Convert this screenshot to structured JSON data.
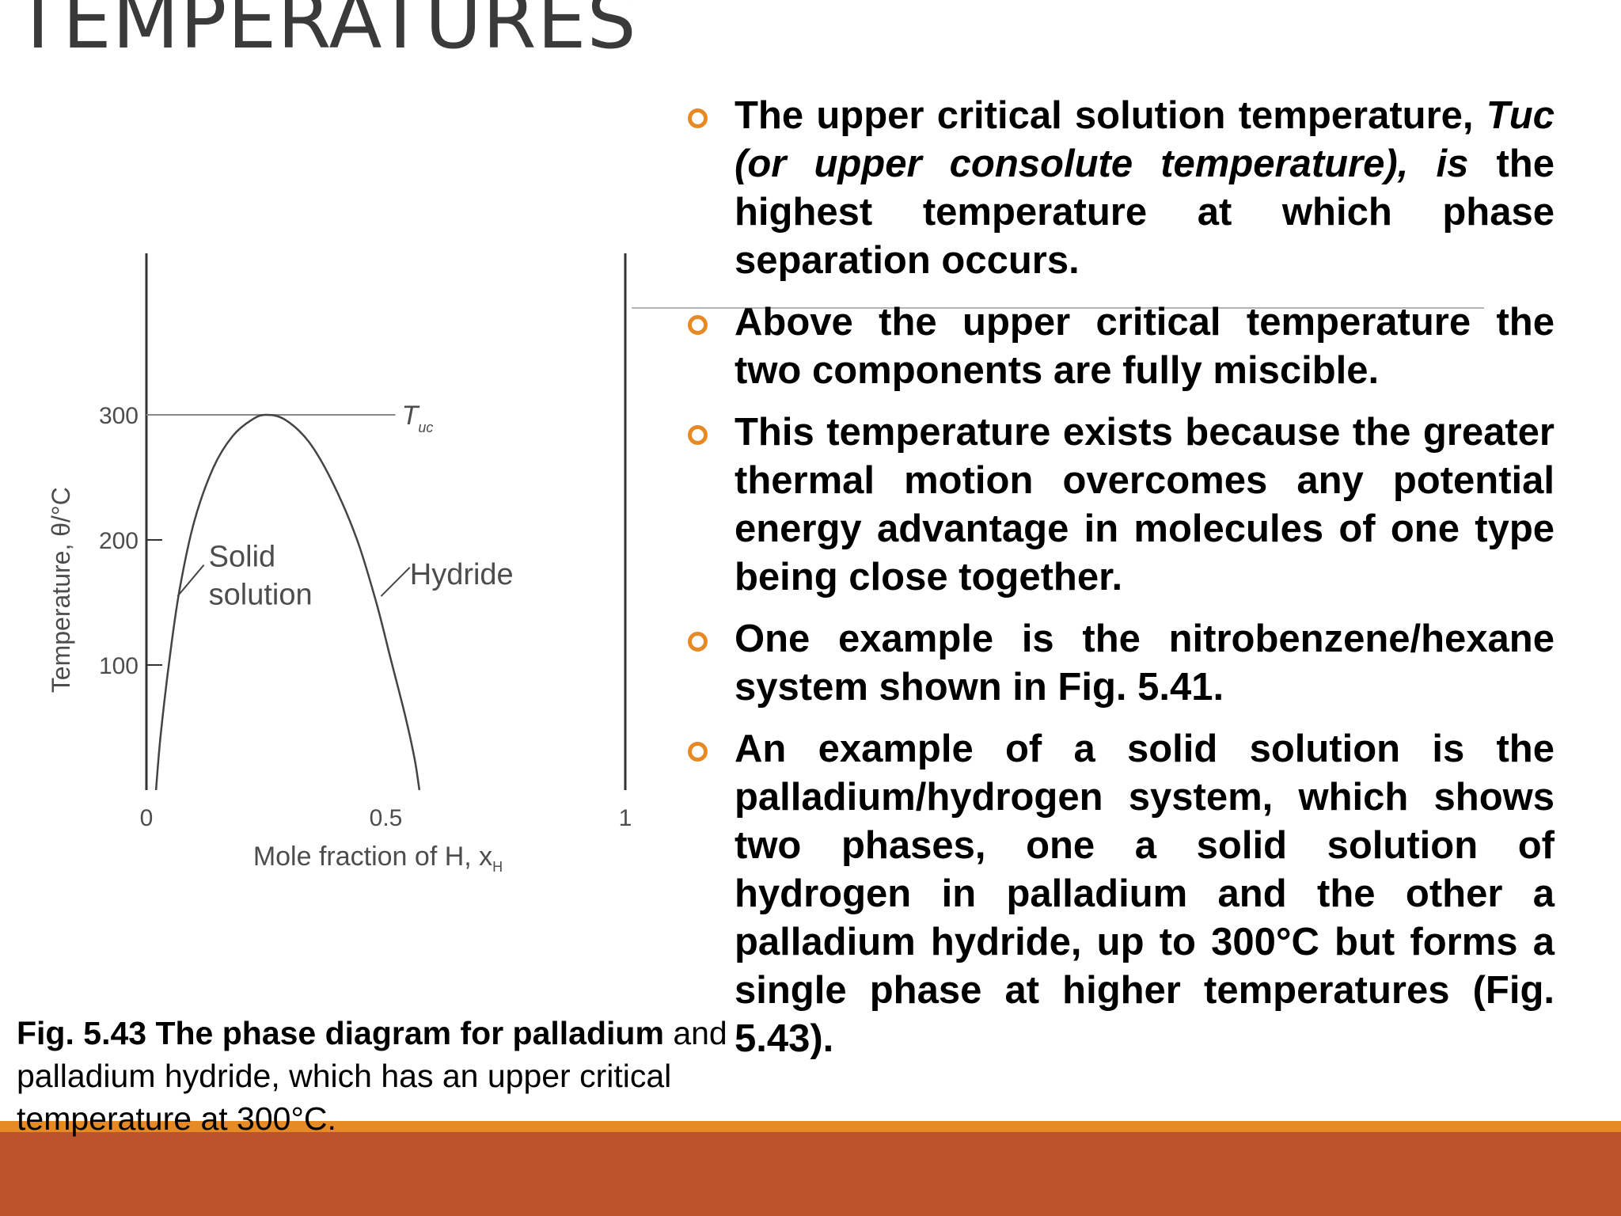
{
  "title": "TEMPERATURES",
  "bullets": [
    {
      "parts": [
        {
          "text": "The upper critical solution temperature, ",
          "italic": false
        },
        {
          "text": "Tuc (or upper consolute temperature),",
          "italic": true
        },
        {
          "text": " ",
          "italic": false
        },
        {
          "text": "is",
          "italic": true
        },
        {
          "text": " the highest temperature at which phase separation occurs.",
          "italic": false
        }
      ]
    },
    {
      "parts": [
        {
          "text": "Above the upper critical temperature the two components are fully miscible.",
          "italic": false
        }
      ]
    },
    {
      "parts": [
        {
          "text": "This temperature exists because the greater thermal motion overcomes any potential energy advantage in molecules of one type being close together.",
          "italic": false
        }
      ]
    },
    {
      "parts": [
        {
          "text": "One example is the nitrobenzene/hexane system shown in Fig. 5.41.",
          "italic": false
        }
      ]
    },
    {
      "parts": [
        {
          "text": "An example of a solid solution is the palladium/hydrogen system, which shows two phases, one a solid solution of hydrogen in palladium and the other a palladium hydride, up to 300°C but forms a single phase at higher temperatures (Fig. 5.43).",
          "italic": false
        }
      ]
    }
  ],
  "caption": {
    "bold": "Fig. 5.43 The phase diagram for palladium",
    "rest": " and palladium hydride, which has an upper critical temperature at 300°C."
  },
  "chart_data": {
    "type": "line",
    "xlabel": "Mole fraction of H, x",
    "xlabel_sub": "H",
    "ylabel": "Temperature, θ/°C",
    "xlim": [
      0,
      1
    ],
    "ylim": [
      0,
      320
    ],
    "x_ticks": [
      0,
      0.5,
      1
    ],
    "x_tick_labels": [
      "0",
      "0.5",
      "1"
    ],
    "y_ticks": [
      100,
      200,
      300
    ],
    "y_tick_labels": [
      "100",
      "200",
      "300"
    ],
    "grid": false,
    "series": [
      {
        "x": [
          0.02,
          0.03,
          0.05,
          0.07,
          0.1,
          0.14,
          0.18,
          0.22,
          0.25,
          0.29,
          0.34,
          0.39,
          0.44,
          0.48,
          0.51,
          0.54,
          0.56,
          0.57
        ],
        "y": [
          0,
          45,
          110,
          162,
          215,
          258,
          283,
          296,
          300,
          296,
          278,
          245,
          200,
          150,
          105,
          60,
          25,
          0
        ]
      }
    ],
    "reference_line": {
      "y": 300,
      "x_range": [
        0,
        0.52
      ],
      "label": "T",
      "label_sub": "uc"
    },
    "annotations": [
      {
        "lines": [
          "Solid",
          "solution"
        ],
        "x": 0.13,
        "y": 185
      },
      {
        "lines": [
          "Hydride"
        ],
        "x": 0.55,
        "y": 172
      }
    ]
  }
}
